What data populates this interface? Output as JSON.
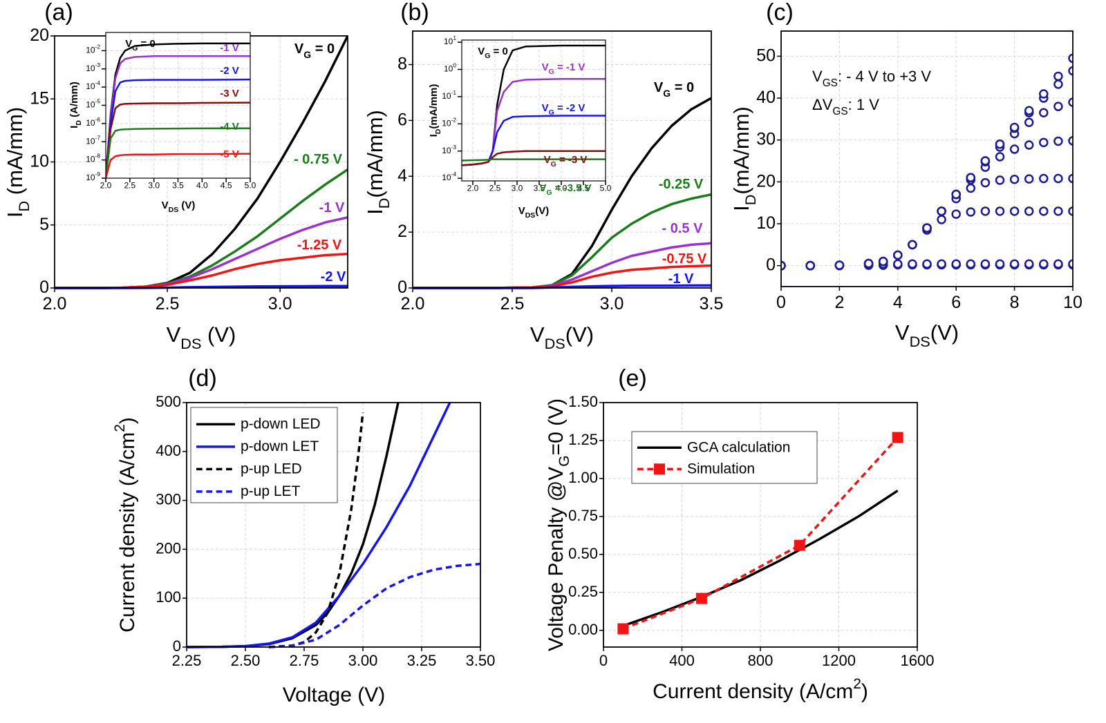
{
  "chart_data": [
    {
      "type": "line",
      "label": "(a)",
      "x_label": "V_{DS} (V)",
      "y_label": "I_{D} (mA/mm)",
      "xlim": [
        2,
        3.3
      ],
      "xticks": [
        {
          "value": 2,
          "label": "2.0"
        },
        2.5,
        {
          "value": 3,
          "label": "3.0"
        }
      ],
      "ylim": [
        0,
        20
      ],
      "yticks": [
        0,
        5,
        10,
        15,
        20
      ],
      "grid": true,
      "legend": "inline",
      "x": [
        2.0,
        2.1,
        2.2,
        2.3,
        2.4,
        2.5,
        2.6,
        2.7,
        2.8,
        2.9,
        3.0,
        3.1,
        3.2,
        3.3
      ],
      "series": [
        {
          "name": "V_{G} = 0",
          "color": "#000000",
          "values": [
            0,
            0,
            0,
            0.02,
            0.1,
            0.4,
            1.2,
            2.7,
            4.7,
            7.1,
            10,
            13.1,
            16.4,
            20
          ]
        },
        {
          "name": "- 0.75 V",
          "color": "#1c7c1c",
          "values": [
            0,
            0,
            0,
            0.02,
            0.1,
            0.35,
            0.9,
            1.8,
            2.9,
            4.1,
            5.5,
            6.9,
            8.2,
            9.4
          ]
        },
        {
          "name": "-1 V",
          "color": "#9a32cd",
          "values": [
            0,
            0,
            0,
            0.02,
            0.1,
            0.3,
            0.8,
            1.5,
            2.3,
            3.1,
            3.9,
            4.6,
            5.2,
            5.6
          ]
        },
        {
          "name": "-1.25 V",
          "color": "#f01414",
          "values": [
            0,
            0,
            0,
            0.02,
            0.08,
            0.25,
            0.6,
            1.0,
            1.5,
            1.9,
            2.2,
            2.4,
            2.6,
            2.7
          ]
        },
        {
          "name": "-2 V",
          "color": "#1414f0",
          "values": [
            0,
            0,
            0,
            0,
            0.01,
            0.03,
            0.06,
            0.08,
            0.1,
            0.12,
            0.13,
            0.14,
            0.15,
            0.15
          ]
        }
      ]
    },
    {
      "type": "line",
      "x_label": "V_{DS} (V)",
      "y_label": "I_{D} (A/mm)",
      "log": true,
      "xlim": [
        2,
        5
      ],
      "xticks": [
        {
          "value": 2,
          "label": "2.0"
        },
        2.5,
        {
          "value": 3,
          "label": "3.0"
        },
        3.5,
        {
          "value": 4,
          "label": "4.0"
        },
        4.5,
        {
          "value": 5,
          "label": "5.0"
        }
      ],
      "ylim": [
        1e-09,
        0.1
      ],
      "yticks": [
        {
          "value": 1e-09,
          "label": "10^{-9}"
        },
        {
          "value": 1e-08,
          "label": "10^{-8}"
        },
        {
          "value": 1e-07,
          "label": "10^{-7}"
        },
        {
          "value": 1e-06,
          "label": "10^{-6}"
        },
        {
          "value": 1e-05,
          "label": "10^{-5}"
        },
        {
          "value": 0.0001,
          "label": "10^{-4}"
        },
        {
          "value": 0.001,
          "label": "10^{-3}"
        },
        {
          "value": 0.01,
          "label": "10^{-2}"
        }
      ],
      "grid": true,
      "legend": "inline",
      "x": [
        2.0,
        2.1,
        2.2,
        2.3,
        2.4,
        2.6,
        3.0,
        3.5,
        4.0,
        5.0
      ],
      "series": [
        {
          "name": "V_{G} = 0",
          "color": "#000000",
          "values": [
            1e-09,
            3e-06,
            0.0005,
            0.004,
            0.01,
            0.018,
            0.022,
            0.024,
            0.025,
            0.025
          ]
        },
        {
          "name": "-1 V",
          "color": "#9a32cd",
          "values": [
            1e-09,
            2e-06,
            0.0003,
            0.002,
            0.0035,
            0.0045,
            0.005,
            0.005,
            0.005,
            0.005
          ]
        },
        {
          "name": "-2 V",
          "color": "#1414f0",
          "values": [
            1e-09,
            1e-06,
            6e-05,
            0.00018,
            0.00022,
            0.00024,
            0.00025,
            0.00025,
            0.00025,
            0.00026
          ]
        },
        {
          "name": "-3 V",
          "color": "#8b0a0a",
          "values": [
            1e-09,
            5e-07,
            7e-06,
            1.1e-05,
            1.2e-05,
            1.25e-05,
            1.3e-05,
            1.3e-05,
            1.35e-05,
            1.4e-05
          ]
        },
        {
          "name": "-4 V",
          "color": "#1c7c1c",
          "values": [
            1e-09,
            1.5e-07,
            4e-07,
            4.6e-07,
            4.8e-07,
            5e-07,
            5.2e-07,
            5.3e-07,
            5.4e-07,
            5.5e-07
          ]
        },
        {
          "name": "-5 V",
          "color": "#f01414",
          "values": [
            1e-09,
            1e-08,
            1.6e-08,
            1.8e-08,
            1.9e-08,
            2e-08,
            2e-08,
            2.1e-08,
            2.1e-08,
            2.2e-08
          ]
        }
      ]
    },
    {
      "type": "line",
      "label": "(b)",
      "x_label": "V_{DS}(V)",
      "y_label": "I_{D}(mA/mm)",
      "xlim": [
        2,
        3.5
      ],
      "xticks": [
        {
          "value": 2,
          "label": "2.0"
        },
        2.5,
        {
          "value": 3,
          "label": "3.0"
        },
        3.5
      ],
      "ylim": [
        0,
        9.2
      ],
      "yticks": [
        0,
        2,
        4,
        6,
        8
      ],
      "grid": true,
      "legend": "inline",
      "x": [
        2.0,
        2.2,
        2.4,
        2.6,
        2.7,
        2.8,
        2.9,
        3.0,
        3.1,
        3.2,
        3.3,
        3.4,
        3.5
      ],
      "series": [
        {
          "name": "V_{G} = 0",
          "color": "#000000",
          "values": [
            0,
            0,
            0,
            0.02,
            0.1,
            0.5,
            1.5,
            2.8,
            4.0,
            5.0,
            5.8,
            6.4,
            6.8
          ]
        },
        {
          "name": "-0.25 V",
          "color": "#1c7c1c",
          "values": [
            0,
            0,
            0,
            0.02,
            0.1,
            0.45,
            1.1,
            1.8,
            2.3,
            2.7,
            3.0,
            3.2,
            3.35
          ]
        },
        {
          "name": "- 0.5 V",
          "color": "#9a32cd",
          "values": [
            0,
            0,
            0,
            0.02,
            0.08,
            0.3,
            0.6,
            0.9,
            1.15,
            1.3,
            1.45,
            1.55,
            1.6
          ]
        },
        {
          "name": "-0.75 V",
          "color": "#f01414",
          "values": [
            0,
            0,
            0,
            0.02,
            0.06,
            0.2,
            0.4,
            0.55,
            0.65,
            0.7,
            0.75,
            0.78,
            0.8
          ]
        },
        {
          "name": "-1 V",
          "color": "#1414f0",
          "values": [
            0,
            0,
            0,
            0,
            0.02,
            0.04,
            0.06,
            0.07,
            0.08,
            0.08,
            0.08,
            0.09,
            0.09
          ]
        }
      ]
    },
    {
      "type": "line",
      "x_label": "V_{DS}(V)",
      "y_label": "I_{D}(mA/mm)",
      "log": true,
      "xlim": [
        1.75,
        5
      ],
      "xticks": [
        {
          "value": 2,
          "label": "2.0"
        },
        2.5,
        {
          "value": 3,
          "label": "3.0"
        },
        3.5,
        {
          "value": 4,
          "label": "4.0"
        },
        4.5,
        {
          "value": 5,
          "label": "5.0"
        }
      ],
      "ylim": [
        8e-05,
        12
      ],
      "yticks": [
        {
          "value": 0.0001,
          "label": "10^{-4}"
        },
        {
          "value": 0.001,
          "label": "10^{-3}"
        },
        {
          "value": 0.01,
          "label": "10^{-2}"
        },
        {
          "value": 0.1,
          "label": "10^{-1}"
        },
        {
          "value": 1,
          "label": "10^{0}"
        },
        {
          "value": 10,
          "label": "10^{1}"
        }
      ],
      "grid": true,
      "legend": "inline",
      "x": [
        1.75,
        2.0,
        2.2,
        2.35,
        2.45,
        2.55,
        2.7,
        2.9,
        3.2,
        4.0,
        5.0
      ],
      "series": [
        {
          "name": "V_{G} = 0",
          "color": "#000000",
          "values": [
            0.0003,
            0.00032,
            0.00035,
            0.0004,
            0.001,
            0.05,
            1,
            5,
            7,
            7.5,
            7.5
          ]
        },
        {
          "name": "V_{G} = -1 V",
          "color": "#9a32cd",
          "values": [
            0.0003,
            0.00032,
            0.00035,
            0.0004,
            0.001,
            0.03,
            0.15,
            0.35,
            0.42,
            0.45,
            0.45
          ]
        },
        {
          "name": "V_{G} = -2 V",
          "color": "#1414f0",
          "values": [
            0.0003,
            0.00032,
            0.00035,
            0.0004,
            0.001,
            0.005,
            0.013,
            0.018,
            0.019,
            0.02,
            0.02
          ]
        },
        {
          "name": "V_{G} = -3 V",
          "color": "#8b0a0a",
          "values": [
            0.0003,
            0.00032,
            0.00035,
            0.0004,
            0.0006,
            0.0008,
            0.0009,
            0.00095,
            0.001,
            0.001,
            0.001
          ]
        },
        {
          "name": "V_{G} = -3.5 V",
          "color": "#1c7c1c",
          "values": [
            0.00045,
            0.00046,
            0.00047,
            0.00048,
            0.0005,
            0.0005,
            0.0005,
            0.0005,
            0.0005,
            0.0005,
            0.0005
          ]
        }
      ]
    },
    {
      "type": "scatter",
      "label": "(c)",
      "x_label": "V_{DS}(V)",
      "y_label": "I_{D}(mA/mm)",
      "annotations": [
        "V_{GS}: - 4 V to +3 V",
        "ΔV_{GS}: 1 V"
      ],
      "xlim": [
        0,
        10
      ],
      "xticks": [
        0,
        2,
        4,
        6,
        8,
        10
      ],
      "ylim": [
        -5,
        56
      ],
      "yticks": [
        0,
        10,
        20,
        30,
        40,
        50
      ],
      "grid": true,
      "x": [
        0,
        1,
        2,
        3,
        3.5,
        4,
        4.5,
        5,
        5.5,
        6,
        6.5,
        7,
        7.5,
        8,
        8.5,
        9,
        9.5,
        10
      ],
      "series": [
        {
          "color": "#1c1c8f",
          "values": [
            0,
            0,
            0,
            0.1,
            0.1,
            0.2,
            0.2,
            0.2,
            0.2,
            0.2,
            0.2,
            0.2,
            0.2,
            0.2,
            0.2,
            0.2,
            0.2,
            0.2
          ]
        },
        {
          "color": "#1c1c8f",
          "values": [
            0,
            0,
            0.1,
            0.3,
            0.4,
            0.4,
            0.4,
            0.4,
            0.4,
            0.4,
            0.4,
            0.4,
            0.4,
            0.4,
            0.4,
            0.4,
            0.4,
            0.4
          ]
        },
        {
          "color": "#1c1c8f",
          "values": [
            0,
            0,
            0.1,
            0.5,
            1,
            2.5,
            5,
            8.5,
            11,
            12.3,
            12.8,
            13,
            13,
            13,
            13,
            13,
            13,
            13
          ]
        },
        {
          "color": "#1c1c8f",
          "values": [
            0,
            0,
            0.1,
            0.5,
            1,
            2.5,
            5,
            9,
            13,
            16,
            18.5,
            19.8,
            20.4,
            20.6,
            20.7,
            20.8,
            20.8,
            20.8
          ]
        },
        {
          "color": "#1c1c8f",
          "values": [
            0,
            0,
            0.1,
            0.5,
            1,
            2.5,
            5,
            9,
            13,
            17,
            20.5,
            23.5,
            26,
            27.8,
            28.8,
            29.4,
            29.7,
            29.8
          ]
        },
        {
          "color": "#1c1c8f",
          "values": [
            0,
            0,
            0.1,
            0.5,
            1,
            2.5,
            5,
            9,
            13,
            17,
            21,
            24.8,
            28.3,
            31.5,
            34.2,
            36.5,
            38,
            39
          ]
        },
        {
          "color": "#1c1c8f",
          "values": [
            0,
            0,
            0.1,
            0.5,
            1,
            2.5,
            5,
            9,
            13,
            17,
            21,
            25,
            29,
            32.8,
            36.5,
            40,
            43.3,
            46.5
          ]
        },
        {
          "color": "#1c1c8f",
          "values": [
            0,
            0,
            0.1,
            0.5,
            1,
            2.5,
            5,
            9,
            13,
            17,
            21,
            25,
            29,
            33,
            37,
            41,
            45.2,
            49.5
          ]
        }
      ]
    },
    {
      "type": "line",
      "label": "(d)",
      "x_label": "Voltage (V)",
      "y_label": "Current density (A/cm^{2})",
      "xlim": [
        2.25,
        3.5
      ],
      "xticks": [
        2.25,
        {
          "value": 2.5,
          "label": "2.50"
        },
        2.75,
        {
          "value": 3,
          "label": "3.00"
        },
        3.25,
        {
          "value": 3.5,
          "label": "3.50"
        }
      ],
      "ylim": [
        0,
        500
      ],
      "yticks": [
        0,
        100,
        200,
        300,
        400,
        500
      ],
      "grid": true,
      "legend": "upper left",
      "series": [
        {
          "name": "p-down LED",
          "color": "#000000",
          "x": [
            2.25,
            2.4,
            2.5,
            2.6,
            2.7,
            2.8,
            2.85,
            2.9,
            2.95,
            3.0,
            3.05,
            3.1,
            3.15
          ],
          "values": [
            0,
            0.5,
            2,
            6,
            18,
            45,
            70,
            105,
            150,
            210,
            290,
            390,
            500
          ]
        },
        {
          "name": "p-down LET",
          "color": "#1414f0",
          "x": [
            2.25,
            2.4,
            2.5,
            2.6,
            2.7,
            2.8,
            2.9,
            3.0,
            3.1,
            3.2,
            3.3,
            3.37
          ],
          "values": [
            0,
            0.5,
            2,
            7,
            20,
            50,
            105,
            170,
            245,
            330,
            430,
            500
          ]
        },
        {
          "name": "p-up LED",
          "color": "#000000",
          "dash": true,
          "x": [
            2.6,
            2.7,
            2.75,
            2.8,
            2.85,
            2.9,
            2.95,
            2.98,
            3.0
          ],
          "values": [
            0,
            3,
            10,
            30,
            70,
            150,
            280,
            390,
            480
          ]
        },
        {
          "name": "p-up LET",
          "color": "#1414f0",
          "dash": true,
          "x": [
            2.6,
            2.7,
            2.8,
            2.9,
            3.0,
            3.1,
            3.2,
            3.3,
            3.4,
            3.5
          ],
          "values": [
            0,
            3,
            15,
            45,
            85,
            120,
            143,
            158,
            166,
            170
          ]
        }
      ]
    },
    {
      "type": "line",
      "label": "(e)",
      "x_label": "Current density (A/cm^{2})",
      "y_label": "Voltage Penalty @V_{G}=0  (V)",
      "xlim": [
        0,
        1600
      ],
      "xticks": [
        0,
        400,
        800,
        1200,
        1600
      ],
      "ylim": [
        -0.11,
        1.5
      ],
      "yticks": [
        {
          "value": 0,
          "label": "0.00"
        },
        {
          "value": 0.25,
          "label": "0.25"
        },
        {
          "value": 0.5,
          "label": "0.50"
        },
        {
          "value": 0.75,
          "label": "0.75"
        },
        {
          "value": 1,
          "label": "1.00"
        },
        {
          "value": 1.25,
          "label": "1.25"
        },
        {
          "value": 1.5,
          "label": "1.50"
        }
      ],
      "grid": true,
      "legend": "upper left",
      "series": [
        {
          "name": "GCA calculation",
          "color": "#000000",
          "x": [
            100,
            300,
            500,
            700,
            900,
            1100,
            1300,
            1500
          ],
          "values": [
            0.03,
            0.12,
            0.22,
            0.33,
            0.46,
            0.6,
            0.75,
            0.92
          ]
        },
        {
          "name": "Simulation",
          "color": "#f01414",
          "dash": true,
          "marker": "square",
          "x": [
            100,
            500,
            1000,
            1500
          ],
          "values": [
            0.01,
            0.21,
            0.56,
            1.27
          ]
        }
      ]
    }
  ]
}
